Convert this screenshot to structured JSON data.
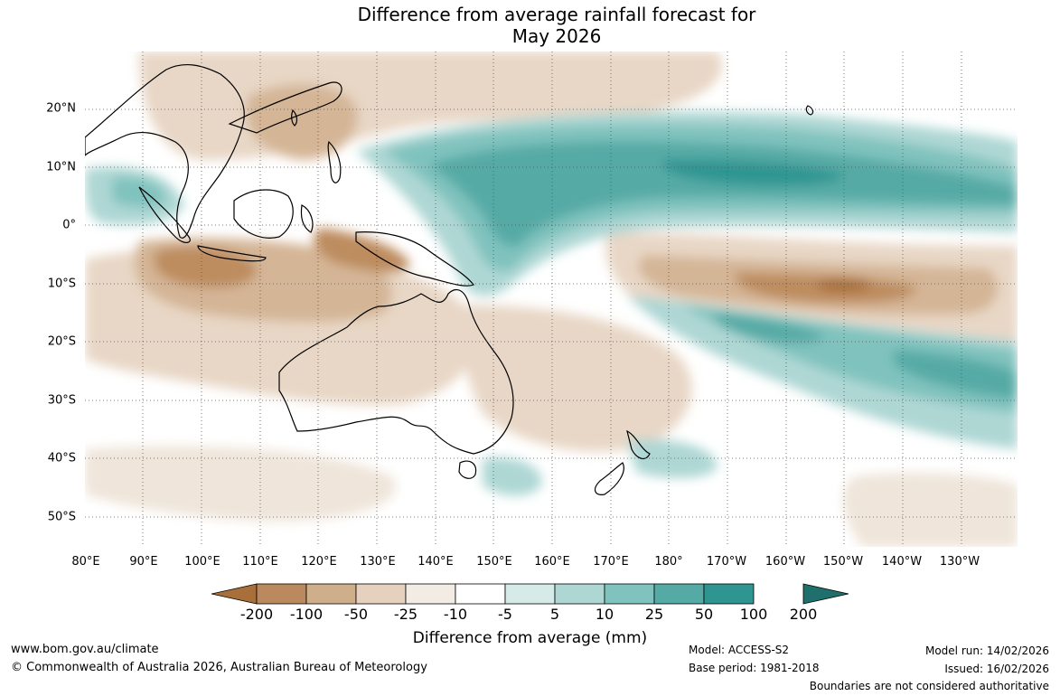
{
  "title": {
    "line1": "Difference from average rainfall forecast for",
    "line2": "May 2026"
  },
  "map": {
    "lat_labels": [
      "20°N",
      "10°N",
      "0°",
      "10°S",
      "20°S",
      "30°S",
      "40°S",
      "50°S"
    ],
    "lon_labels": [
      "80°E",
      "90°E",
      "100°E",
      "110°E",
      "120°E",
      "130°E",
      "140°E",
      "150°E",
      "160°E",
      "170°E",
      "180°",
      "170°W",
      "160°W",
      "150°W",
      "140°W",
      "130°W"
    ],
    "gridlines": "dotted"
  },
  "colorbar": {
    "ticks": [
      "-200",
      "-100",
      "-50",
      "-25",
      "-10",
      "-5",
      "5",
      "10",
      "25",
      "50",
      "100",
      "200"
    ],
    "colors": [
      "#a86f3a",
      "#ba8a5e",
      "#cfae8c",
      "#e5d1bd",
      "#f3ece4",
      "#ffffff",
      "#d6eae8",
      "#aed7d4",
      "#80c2be",
      "#56aaa6",
      "#2f9591",
      "#1f6f6c"
    ],
    "label": "Difference from average (mm)"
  },
  "footer": {
    "website": "www.bom.gov.au/climate",
    "copyright": "© Commonwealth of Australia 2026, Australian Bureau of Meteorology",
    "model": "Model: ACCESS-S2",
    "base_period": "Base period: 1981-2018",
    "model_run": "Model run: 14/02/2026",
    "issued": "Issued: 16/02/2026",
    "disclaimer": "Boundaries are not considered authoritative"
  }
}
